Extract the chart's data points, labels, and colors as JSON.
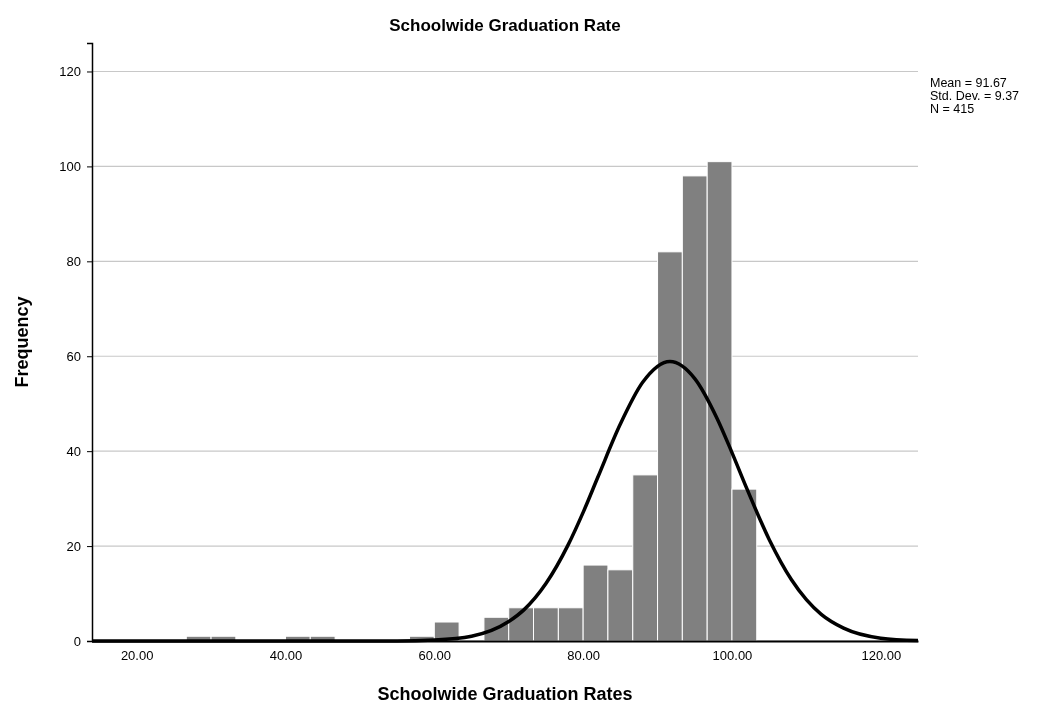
{
  "chart_data": {
    "type": "histogram",
    "title": "Schoolwide Graduation Rate",
    "xlabel": "Schoolwide Graduation Rates",
    "ylabel": "Frequency",
    "bins": [
      26.67,
      30,
      33.33,
      36.67,
      40,
      43.33,
      46.67,
      50,
      53.33,
      56.67,
      60,
      63.33,
      66.67,
      70,
      73.33,
      76.67,
      80,
      83.33,
      86.67,
      90,
      93.33,
      96.67,
      100,
      103.33
    ],
    "values": [
      1,
      1,
      0,
      0,
      1,
      1,
      0,
      0,
      0,
      1,
      4,
      0,
      5,
      7,
      7,
      7,
      16,
      15,
      35,
      82,
      98,
      101,
      32
    ],
    "color": "#808080",
    "series": [
      {
        "type": "line",
        "color": "#000000",
        "x": [
          14,
          30,
          40,
          50,
          55,
          60,
          65,
          70,
          72,
          75,
          78,
          80,
          82,
          85,
          88,
          91.67,
          95,
          98,
          100,
          102,
          105,
          108,
          110,
          112,
          115,
          120,
          125
        ],
        "values": [
          0,
          0,
          0,
          0,
          0,
          0.2,
          1,
          4.1,
          6.5,
          12.1,
          20.3,
          27.1,
          34.6,
          45.7,
          54.5,
          58.9,
          55.3,
          46.9,
          39.7,
          32.1,
          21.4,
          12.9,
          8.7,
          5.6,
          2.7,
          0.6,
          0.1
        ]
      }
    ],
    "xlim": [
      14,
      125
    ],
    "ylim": [
      0,
      126
    ],
    "xticks": [
      {
        "value": 20,
        "label": "20.00"
      },
      {
        "value": 40,
        "label": "40.00"
      },
      {
        "value": 60,
        "label": "60.00"
      },
      {
        "value": 80,
        "label": "80.00"
      },
      {
        "value": 100,
        "label": "100.00"
      },
      {
        "value": 120,
        "label": "120.00"
      }
    ],
    "yticks": [
      0,
      20,
      40,
      60,
      80,
      100,
      120
    ],
    "grid": "y",
    "marker": "none",
    "line_style": "solid",
    "annotations": [
      "Mean = 91.67",
      "Std. Dev. = 9.37",
      "N = 415"
    ]
  }
}
